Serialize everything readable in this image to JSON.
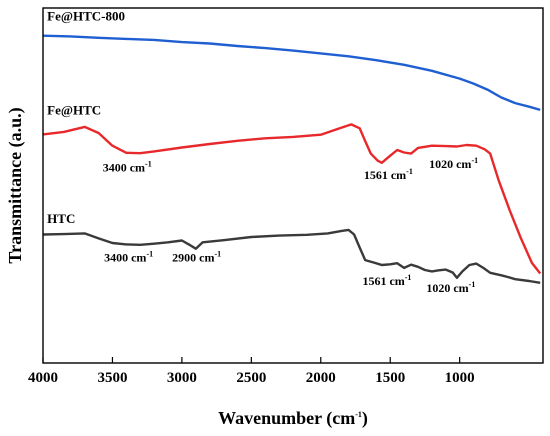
{
  "chart_data": {
    "type": "line",
    "title": "",
    "xlabel": "Wavenumber (cm",
    "xlabel_sup": "-1",
    "xlabel_tail": ")",
    "ylabel": "Transmittance (a.u.)",
    "xlim": [
      4000,
      400
    ],
    "x_reversed": true,
    "ylim": [
      0,
      1
    ],
    "y_ticks_shown": false,
    "grid": false,
    "x_ticks": [
      4000,
      3500,
      3000,
      2500,
      2000,
      1500,
      1000
    ],
    "series": [
      {
        "name": "Fe@HTC-800",
        "color": "#1f5fd1",
        "points": [
          [
            4000,
            0.922
          ],
          [
            3800,
            0.92
          ],
          [
            3600,
            0.916
          ],
          [
            3400,
            0.913
          ],
          [
            3200,
            0.91
          ],
          [
            3000,
            0.904
          ],
          [
            2800,
            0.9
          ],
          [
            2600,
            0.893
          ],
          [
            2400,
            0.887
          ],
          [
            2200,
            0.88
          ],
          [
            2000,
            0.872
          ],
          [
            1800,
            0.864
          ],
          [
            1600,
            0.853
          ],
          [
            1400,
            0.84
          ],
          [
            1200,
            0.823
          ],
          [
            1000,
            0.801
          ],
          [
            900,
            0.787
          ],
          [
            800,
            0.77
          ],
          [
            700,
            0.748
          ],
          [
            600,
            0.732
          ],
          [
            500,
            0.722
          ],
          [
            420,
            0.713
          ]
        ]
      },
      {
        "name": "Fe@HTC",
        "color": "#e8292c",
        "points": [
          [
            4000,
            0.644
          ],
          [
            3850,
            0.651
          ],
          [
            3700,
            0.665
          ],
          [
            3600,
            0.648
          ],
          [
            3500,
            0.612
          ],
          [
            3400,
            0.592
          ],
          [
            3300,
            0.591
          ],
          [
            3200,
            0.596
          ],
          [
            3000,
            0.607
          ],
          [
            2800,
            0.617
          ],
          [
            2600,
            0.626
          ],
          [
            2400,
            0.633
          ],
          [
            2200,
            0.637
          ],
          [
            2000,
            0.643
          ],
          [
            1850,
            0.663
          ],
          [
            1780,
            0.672
          ],
          [
            1720,
            0.661
          ],
          [
            1680,
            0.625
          ],
          [
            1640,
            0.59
          ],
          [
            1590,
            0.57
          ],
          [
            1561,
            0.564
          ],
          [
            1500,
            0.584
          ],
          [
            1450,
            0.6
          ],
          [
            1400,
            0.593
          ],
          [
            1350,
            0.59
          ],
          [
            1300,
            0.606
          ],
          [
            1200,
            0.612
          ],
          [
            1100,
            0.611
          ],
          [
            1020,
            0.61
          ],
          [
            950,
            0.614
          ],
          [
            880,
            0.612
          ],
          [
            820,
            0.602
          ],
          [
            780,
            0.59
          ],
          [
            720,
            0.515
          ],
          [
            640,
            0.43
          ],
          [
            560,
            0.352
          ],
          [
            480,
            0.282
          ],
          [
            420,
            0.252
          ]
        ]
      },
      {
        "name": "HTC",
        "color": "#3a3a3a",
        "points": [
          [
            4000,
            0.362
          ],
          [
            3850,
            0.363
          ],
          [
            3700,
            0.365
          ],
          [
            3600,
            0.351
          ],
          [
            3500,
            0.338
          ],
          [
            3400,
            0.334
          ],
          [
            3300,
            0.333
          ],
          [
            3200,
            0.336
          ],
          [
            3100,
            0.34
          ],
          [
            3000,
            0.345
          ],
          [
            2950,
            0.334
          ],
          [
            2900,
            0.322
          ],
          [
            2850,
            0.34
          ],
          [
            2700,
            0.346
          ],
          [
            2500,
            0.355
          ],
          [
            2300,
            0.359
          ],
          [
            2100,
            0.361
          ],
          [
            1950,
            0.365
          ],
          [
            1850,
            0.372
          ],
          [
            1800,
            0.375
          ],
          [
            1760,
            0.362
          ],
          [
            1720,
            0.325
          ],
          [
            1680,
            0.29
          ],
          [
            1620,
            0.283
          ],
          [
            1561,
            0.276
          ],
          [
            1500,
            0.278
          ],
          [
            1450,
            0.281
          ],
          [
            1400,
            0.268
          ],
          [
            1350,
            0.277
          ],
          [
            1300,
            0.271
          ],
          [
            1250,
            0.262
          ],
          [
            1200,
            0.258
          ],
          [
            1150,
            0.261
          ],
          [
            1100,
            0.263
          ],
          [
            1050,
            0.255
          ],
          [
            1020,
            0.24
          ],
          [
            980,
            0.258
          ],
          [
            930,
            0.276
          ],
          [
            880,
            0.28
          ],
          [
            830,
            0.268
          ],
          [
            780,
            0.254
          ],
          [
            700,
            0.247
          ],
          [
            650,
            0.242
          ],
          [
            600,
            0.236
          ],
          [
            500,
            0.231
          ],
          [
            420,
            0.226
          ]
        ]
      }
    ],
    "series_labels": [
      {
        "text": "Fe@HTC-800",
        "anchor": [
          3970,
          0.965
        ]
      },
      {
        "text": "Fe@HTC",
        "anchor": [
          3970,
          0.7
        ]
      },
      {
        "text": "HTC",
        "anchor": [
          3970,
          0.395
        ]
      }
    ],
    "annotations": [
      {
        "text": "3400 cm",
        "sup": "-1",
        "anchor": [
          3570,
          0.54
        ]
      },
      {
        "text": "1561 cm",
        "sup": "-1",
        "anchor": [
          1690,
          0.518
        ]
      },
      {
        "text": "1020 cm",
        "sup": "-1",
        "anchor": [
          1220,
          0.55
        ]
      },
      {
        "text": "3400 cm",
        "sup": "-1",
        "anchor": [
          3560,
          0.286
        ]
      },
      {
        "text": "2900 cm",
        "sup": "-1",
        "anchor": [
          3070,
          0.286
        ]
      },
      {
        "text": "1561 cm",
        "sup": "-1",
        "anchor": [
          1700,
          0.22
        ]
      },
      {
        "text": "1020 cm",
        "sup": "-1",
        "anchor": [
          1240,
          0.2
        ]
      }
    ]
  }
}
